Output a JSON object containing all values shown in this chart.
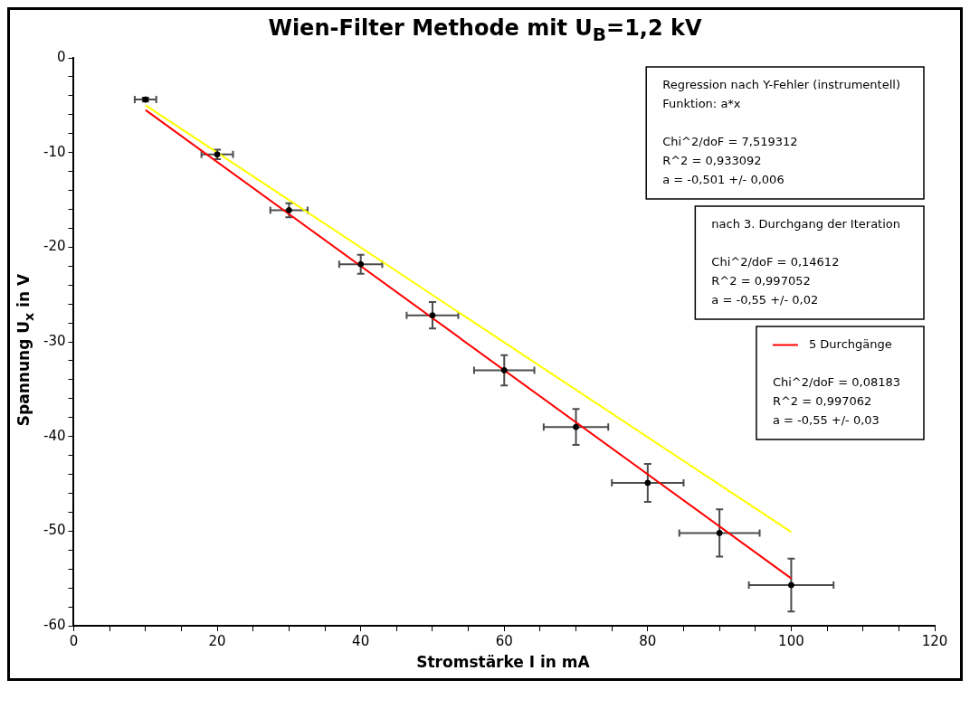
{
  "chart_data": {
    "type": "scatter",
    "title": "Wien-Filter Methode mit U$_{B}$=1,2 kV",
    "xlabel": "Stromstärke I in mA",
    "ylabel": "Spannung U$_{x}$ in V",
    "xlim": [
      0,
      120
    ],
    "ylim": [
      -60,
      0
    ],
    "xticks": [
      0,
      {
        "value": 5,
        "label": null
      },
      {
        "value": 10,
        "label": null
      },
      {
        "value": 15,
        "label": null
      },
      20,
      {
        "value": 25,
        "label": null
      },
      {
        "value": 30,
        "label": null
      },
      {
        "value": 35,
        "label": null
      },
      40,
      {
        "value": 45,
        "label": null
      },
      {
        "value": 50,
        "label": null
      },
      {
        "value": 55,
        "label": null
      },
      60,
      {
        "value": 65,
        "label": null
      },
      {
        "value": 70,
        "label": null
      },
      {
        "value": 75,
        "label": null
      },
      80,
      {
        "value": 85,
        "label": null
      },
      {
        "value": 90,
        "label": null
      },
      {
        "value": 95,
        "label": null
      },
      100,
      {
        "value": 105,
        "label": null
      },
      {
        "value": 110,
        "label": null
      },
      {
        "value": 115,
        "label": null
      },
      120
    ],
    "yticks": [
      -60,
      {
        "value": -58,
        "label": null
      },
      {
        "value": -56,
        "label": null
      },
      {
        "value": -54,
        "label": null
      },
      {
        "value": -52,
        "label": null
      },
      -50,
      {
        "value": -48,
        "label": null
      },
      {
        "value": -46,
        "label": null
      },
      {
        "value": -44,
        "label": null
      },
      {
        "value": -42,
        "label": null
      },
      -40,
      {
        "value": -38,
        "label": null
      },
      {
        "value": -36,
        "label": null
      },
      {
        "value": -34,
        "label": null
      },
      {
        "value": -32,
        "label": null
      },
      -30,
      {
        "value": -28,
        "label": null
      },
      {
        "value": -26,
        "label": null
      },
      {
        "value": -24,
        "label": null
      },
      {
        "value": -22,
        "label": null
      },
      -20,
      {
        "value": -18,
        "label": null
      },
      {
        "value": -16,
        "label": null
      },
      {
        "value": -14,
        "label": null
      },
      {
        "value": -12,
        "label": null
      },
      -10,
      {
        "value": -8,
        "label": null
      },
      {
        "value": -6,
        "label": null
      },
      {
        "value": -4,
        "label": null
      },
      {
        "value": -2,
        "label": null
      },
      0
    ],
    "grid": false,
    "legend": "right",
    "marker": "circle",
    "series": [
      {
        "color": "#000000",
        "x": [
          10,
          20,
          30,
          40,
          50,
          60,
          70,
          80,
          90,
          100
        ],
        "values": [
          -4.4,
          -10.2,
          -16.1,
          -21.8,
          -27.2,
          -33.0,
          -39.0,
          -44.9,
          -50.2,
          -55.7
        ],
        "errors": [
          0.2,
          0.5,
          0.75,
          1.0,
          1.4,
          1.6,
          1.9,
          2.0,
          2.5,
          2.8
        ],
        "xerrors": [
          1.5,
          2.2,
          2.6,
          3.0,
          3.6,
          4.2,
          4.5,
          5.0,
          5.6,
          5.9
        ]
      },
      {
        "type": "line",
        "marker": "none",
        "color": "#ffff00",
        "x": [
          10,
          100
        ],
        "values": [
          -5.0,
          -50.1
        ]
      },
      {
        "type": "line",
        "marker": "none",
        "name": "5 Durchgänge",
        "color": "#ff0000",
        "x": [
          10,
          100
        ],
        "values": [
          -5.5,
          -55
        ]
      }
    ],
    "annotations": [
      "Regression nach Y-Fehler (instrumentell)\nFunktion: a*x\n\nChi^2/doF = 7,519312\nR^2 = 0,933092\na = -0,501 +/- 0,006",
      "nach 3. Durchgang der Iteration\n\nChi^2/doF = 0,14612\nR^2 = 0,997052\na = -0,55 +/- 0,02",
      "Chi^2/doF = 0,08183\nR^2 = 0,997062\na = -0,55 +/- 0,03"
    ]
  }
}
